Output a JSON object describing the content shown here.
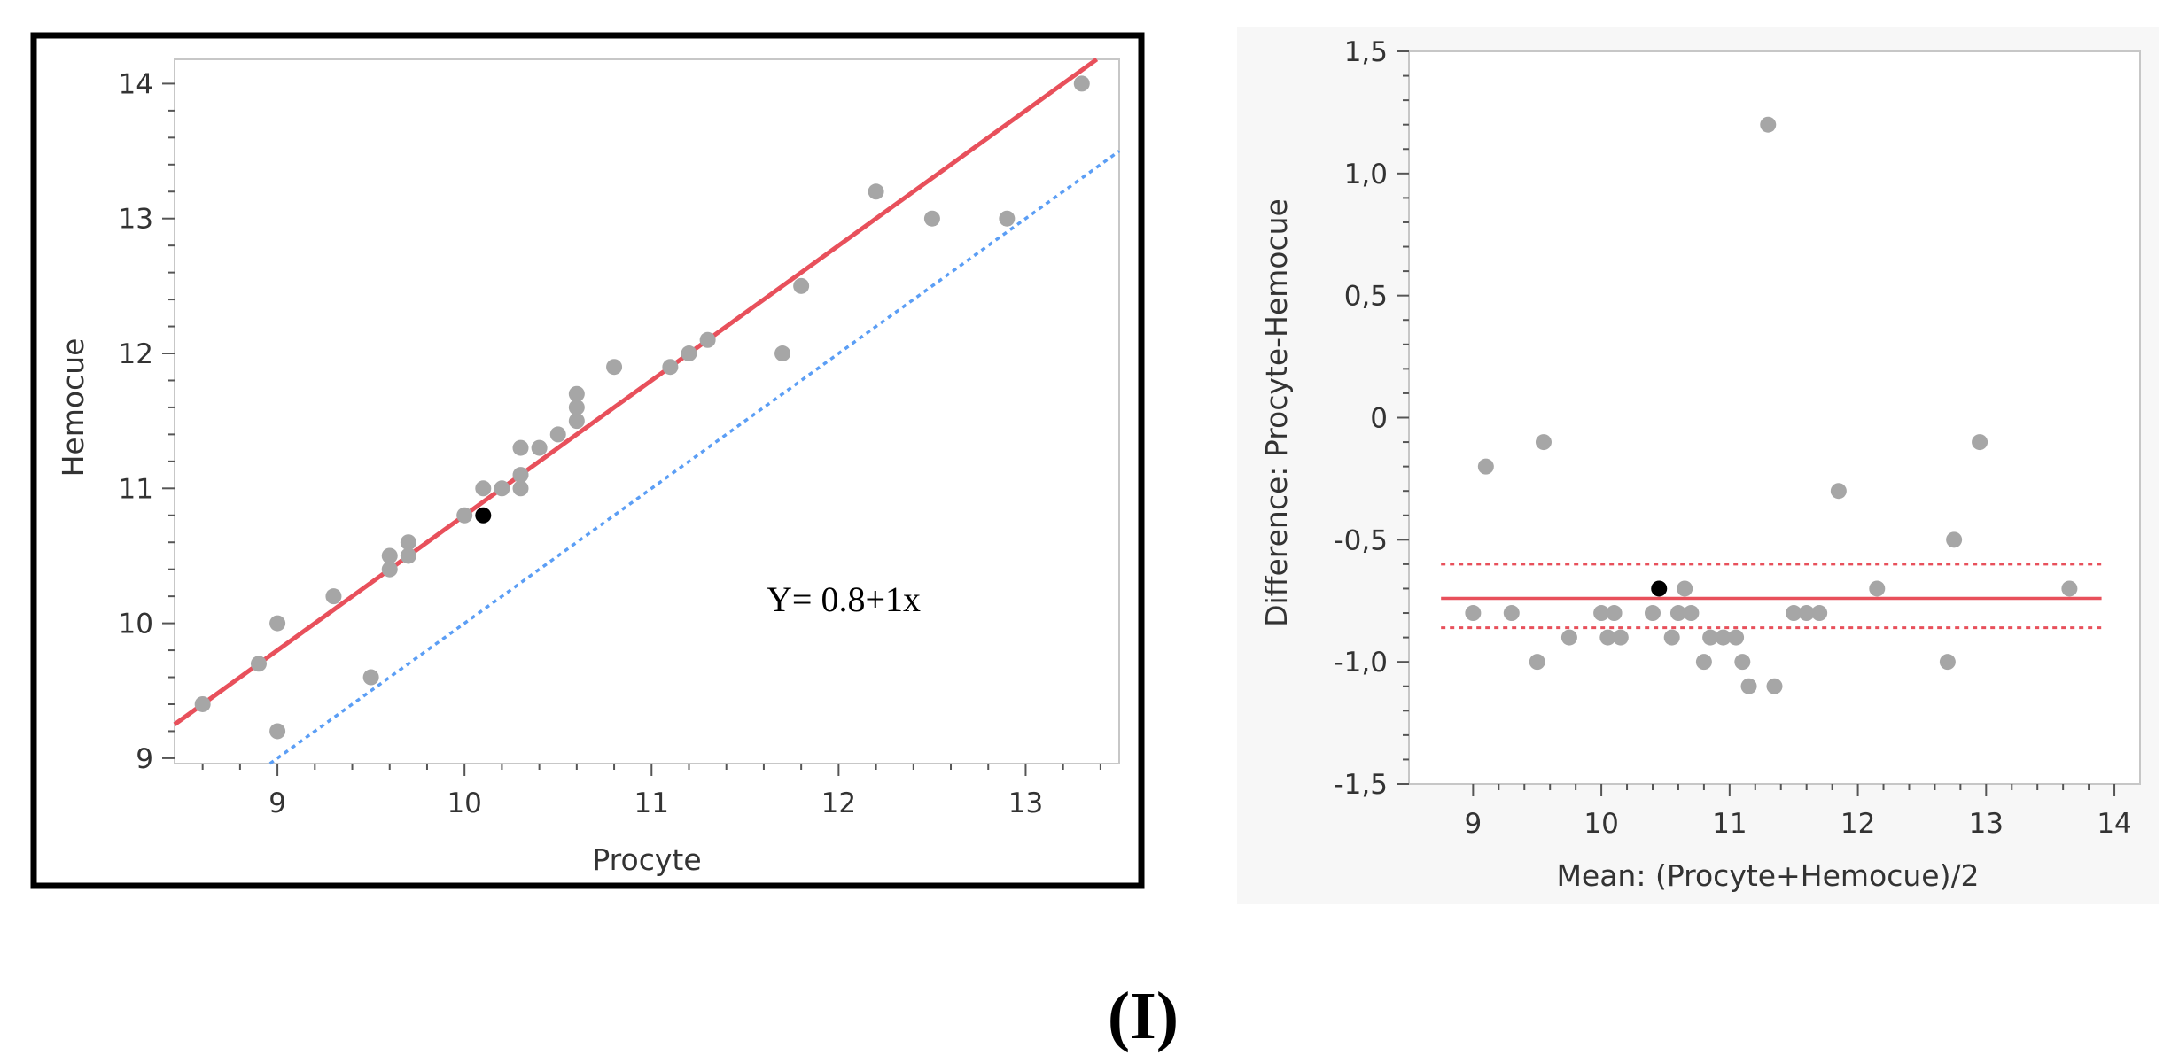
{
  "figure_label": "(I)",
  "chart_data": [
    {
      "type": "scatter",
      "panel": "left",
      "title": "",
      "xlabel": "Procyte",
      "ylabel": "Hemocue",
      "xlim": [
        8.45,
        13.5
      ],
      "ylim": [
        8.96,
        14.18
      ],
      "xticks": [
        9,
        10,
        11,
        12,
        13
      ],
      "yticks": [
        9,
        10,
        11,
        12,
        13,
        14
      ],
      "xtick_labels": [
        "9",
        "10",
        "11",
        "12",
        "13"
      ],
      "ytick_labels": [
        "9",
        "10",
        "11",
        "12",
        "13",
        "14"
      ],
      "annotation": "Y= 0.8+1x",
      "fit_line": {
        "intercept": 0.8,
        "slope": 1,
        "color": "#e8505b"
      },
      "identity_line": {
        "intercept": 0,
        "slope": 1,
        "color": "#5b9ef5",
        "style": "dotted"
      },
      "point_color": "#a6a6a6",
      "highlight_color": "#000000",
      "points": [
        {
          "x": 8.6,
          "y": 9.4
        },
        {
          "x": 8.9,
          "y": 9.7
        },
        {
          "x": 9.0,
          "y": 10.0
        },
        {
          "x": 9.0,
          "y": 9.2
        },
        {
          "x": 9.3,
          "y": 10.2
        },
        {
          "x": 9.5,
          "y": 9.6
        },
        {
          "x": 9.6,
          "y": 10.4
        },
        {
          "x": 9.6,
          "y": 10.5
        },
        {
          "x": 9.7,
          "y": 10.5
        },
        {
          "x": 9.7,
          "y": 10.6
        },
        {
          "x": 10.0,
          "y": 10.8
        },
        {
          "x": 10.1,
          "y": 11.0
        },
        {
          "x": 10.1,
          "y": 10.8,
          "highlight": true
        },
        {
          "x": 10.2,
          "y": 11.0
        },
        {
          "x": 10.3,
          "y": 11.3
        },
        {
          "x": 10.3,
          "y": 11.1
        },
        {
          "x": 10.3,
          "y": 11.0
        },
        {
          "x": 10.4,
          "y": 11.3
        },
        {
          "x": 10.5,
          "y": 11.4
        },
        {
          "x": 10.6,
          "y": 11.7
        },
        {
          "x": 10.6,
          "y": 11.6
        },
        {
          "x": 10.6,
          "y": 11.5
        },
        {
          "x": 10.8,
          "y": 11.9
        },
        {
          "x": 11.1,
          "y": 11.9
        },
        {
          "x": 11.2,
          "y": 12.0
        },
        {
          "x": 11.3,
          "y": 12.1
        },
        {
          "x": 11.7,
          "y": 12.0
        },
        {
          "x": 11.8,
          "y": 12.5
        },
        {
          "x": 12.2,
          "y": 13.2
        },
        {
          "x": 12.5,
          "y": 13.0
        },
        {
          "x": 12.9,
          "y": 13.0
        },
        {
          "x": 13.3,
          "y": 14.0
        }
      ]
    },
    {
      "type": "scatter",
      "panel": "right",
      "title": "",
      "xlabel": "Mean: (Procyte+Hemocue)/2",
      "ylabel": "Difference: Procyte-Hemocue",
      "xlim": [
        8.5,
        14.2
      ],
      "ylim": [
        -1.5,
        1.5
      ],
      "xticks": [
        9,
        10,
        11,
        12,
        13,
        14
      ],
      "yticks": [
        1.5,
        1.0,
        0.5,
        0,
        -0.5,
        -1.0,
        -1.5
      ],
      "xtick_labels": [
        "9",
        "10",
        "11",
        "12",
        "13",
        "14"
      ],
      "ytick_labels": [
        "1,5",
        "1,0",
        "0,5",
        "0",
        "-0,5",
        "-1,0",
        "-1,5"
      ],
      "mean_line": {
        "y": -0.74,
        "x_start": 8.75,
        "x_end": 13.9,
        "color": "#e8505b"
      },
      "ci_lines": [
        {
          "y": -0.6,
          "x_start": 8.75,
          "x_end": 13.9,
          "color": "#e8505b",
          "style": "dotted"
        },
        {
          "y": -0.86,
          "x_start": 8.75,
          "x_end": 13.9,
          "color": "#e8505b",
          "style": "dotted"
        }
      ],
      "point_color": "#a6a6a6",
      "highlight_color": "#000000",
      "points": [
        {
          "x": 9.0,
          "y": -0.8
        },
        {
          "x": 9.1,
          "y": -0.2
        },
        {
          "x": 9.3,
          "y": -0.8
        },
        {
          "x": 9.5,
          "y": -1.0
        },
        {
          "x": 9.55,
          "y": -0.1
        },
        {
          "x": 9.75,
          "y": -0.9
        },
        {
          "x": 10.0,
          "y": -0.8
        },
        {
          "x": 10.05,
          "y": -0.9
        },
        {
          "x": 10.1,
          "y": -0.8
        },
        {
          "x": 10.15,
          "y": -0.9
        },
        {
          "x": 10.4,
          "y": -0.8
        },
        {
          "x": 10.45,
          "y": -0.7,
          "highlight": true
        },
        {
          "x": 10.55,
          "y": -0.9
        },
        {
          "x": 10.6,
          "y": -0.8
        },
        {
          "x": 10.65,
          "y": -0.7
        },
        {
          "x": 10.7,
          "y": -0.8
        },
        {
          "x": 10.8,
          "y": -1.0
        },
        {
          "x": 10.85,
          "y": -0.9
        },
        {
          "x": 10.95,
          "y": -0.9
        },
        {
          "x": 11.05,
          "y": -0.9
        },
        {
          "x": 11.1,
          "y": -1.0
        },
        {
          "x": 11.15,
          "y": -1.1
        },
        {
          "x": 11.3,
          "y": 1.2
        },
        {
          "x": 11.35,
          "y": -1.1
        },
        {
          "x": 11.5,
          "y": -0.8
        },
        {
          "x": 11.6,
          "y": -0.8
        },
        {
          "x": 11.7,
          "y": -0.8
        },
        {
          "x": 11.85,
          "y": -0.3
        },
        {
          "x": 12.15,
          "y": -0.7
        },
        {
          "x": 12.7,
          "y": -1.0
        },
        {
          "x": 12.75,
          "y": -0.5
        },
        {
          "x": 12.95,
          "y": -0.1
        },
        {
          "x": 13.65,
          "y": -0.7
        }
      ]
    }
  ]
}
